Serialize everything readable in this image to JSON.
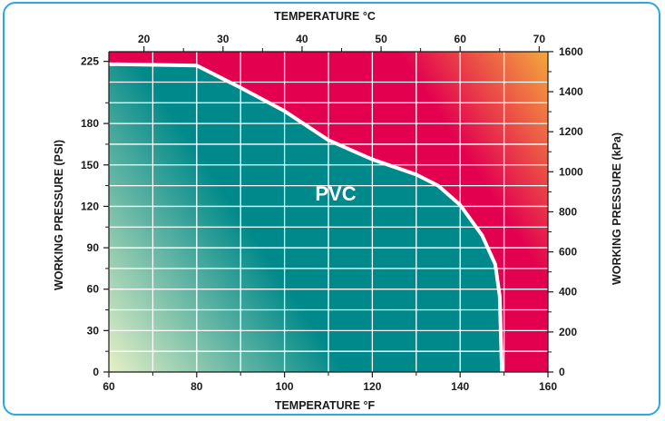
{
  "chart_data": {
    "type": "area",
    "title": "",
    "series": [
      {
        "name": "PVC",
        "x": [
          60,
          80,
          90,
          100,
          110,
          120,
          130,
          135,
          140,
          145,
          148,
          149,
          149.5
        ],
        "y": [
          223,
          222,
          206,
          189,
          168,
          154,
          143,
          135,
          121,
          99,
          78,
          55,
          0
        ]
      }
    ],
    "x_bottom": {
      "label": "TEMPERATURE °F",
      "range": [
        60,
        160
      ],
      "ticks": [
        "60",
        "80",
        "100",
        "120",
        "140",
        "160"
      ]
    },
    "x_top": {
      "label": "TEMPERATURE °C",
      "range": [
        15.56,
        71.11
      ],
      "ticks": [
        "20",
        "30",
        "40",
        "50",
        "60",
        "70"
      ]
    },
    "y_left": {
      "label": "WORKING PRESSURE (PSI)",
      "range": [
        0,
        232
      ],
      "ticks": [
        "0",
        "30",
        "60",
        "90",
        "120",
        "150",
        "180",
        "225"
      ]
    },
    "y_right": {
      "label": "WORKING PRESSURE (kPa)",
      "range": [
        0,
        1599.6
      ],
      "ticks": [
        "0",
        "200",
        "400",
        "600",
        "800",
        "1000",
        "1200",
        "1400",
        "1600"
      ]
    },
    "grid": true,
    "legend": "none",
    "colors": {
      "safe_region": "#00898a",
      "unsafe_region": "#e3004f",
      "hot_corner": "#f7c83a",
      "cool_corner": "#e6f0c6",
      "curve": "#ffffff",
      "frame": "#2aa8df"
    }
  }
}
